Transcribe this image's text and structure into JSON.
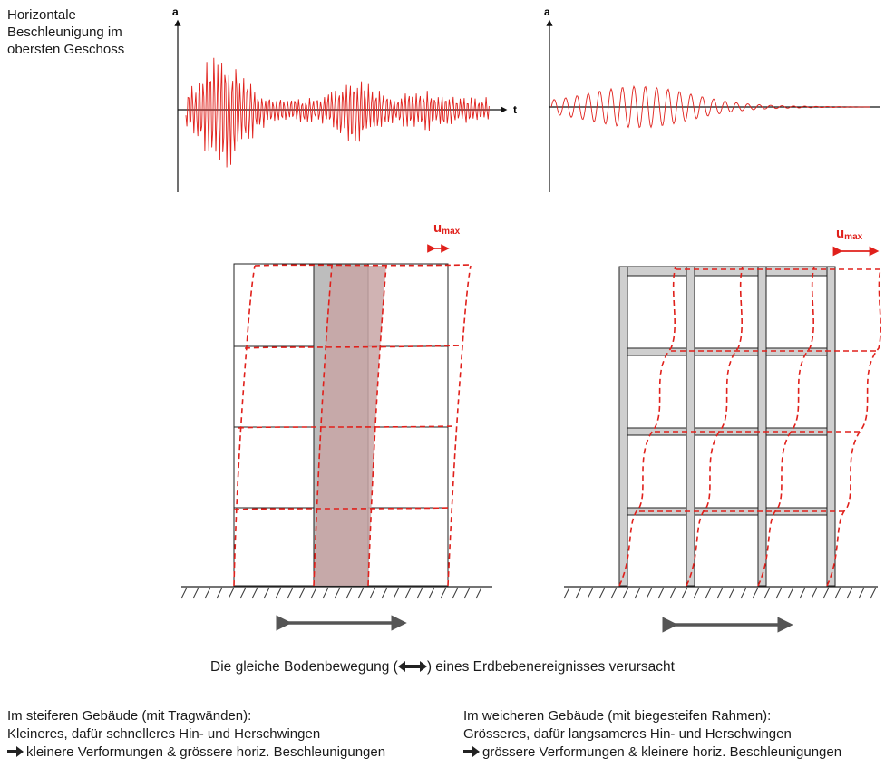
{
  "side_label": "Horizontale\nBeschleunigung im\nobersten Geschoss",
  "plots": {
    "left": {
      "y_axis": "a",
      "x_axis": "t"
    },
    "right": {
      "y_axis": "a"
    }
  },
  "umax": {
    "main": "u",
    "sub": "max"
  },
  "caption": {
    "before": "Die gleiche Bodenbewegung (",
    "after": ") eines Erdbebenereignisses verursacht"
  },
  "left_column": {
    "line1": "Im steiferen Gebäude (mit Tragwänden):",
    "line2": "Kleineres, dafür schnelleres Hin- und Herschwingen",
    "line3": "kleinere Verformungen & grössere horiz. Beschleunigungen"
  },
  "right_column": {
    "line1": "Im weicheren Gebäude (mit biegesteifen Rahmen):",
    "line2": "Grösseres, dafür langsameres Hin- und Herschwingen",
    "line3": "grössere Verformungen & kleinere horiz. Beschleunigungen"
  },
  "colors": {
    "accent_red": "#e0201b",
    "wall_fill": "#c8a6a6",
    "frame_fill": "#cfcfcf",
    "arrow_grey": "#555555"
  }
}
